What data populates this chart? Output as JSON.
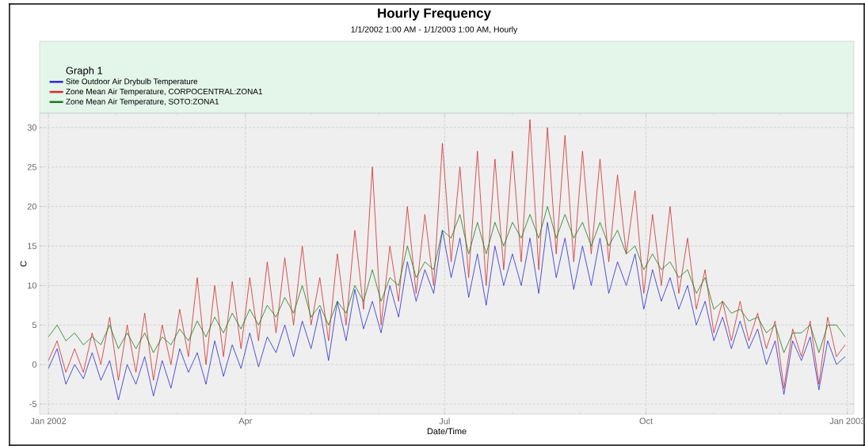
{
  "chart_data": {
    "type": "line",
    "title": "Hourly Frequency",
    "subtitle": "1/1/2002 1:00 AM - 1/1/2003 1:00 AM, Hourly",
    "legend_title": "Graph 1",
    "legend": "top",
    "grid": true,
    "line_style": "solid",
    "xlabel": "Date/Time",
    "ylabel": "C",
    "x": [
      "2002-01-01",
      "2002-01-05",
      "2002-01-09",
      "2002-01-13",
      "2002-01-17",
      "2002-01-21",
      "2002-01-25",
      "2002-01-29",
      "2002-02-02",
      "2002-02-06",
      "2002-02-10",
      "2002-02-14",
      "2002-02-18",
      "2002-02-22",
      "2002-02-26",
      "2002-03-02",
      "2002-03-06",
      "2002-03-10",
      "2002-03-14",
      "2002-03-18",
      "2002-03-22",
      "2002-03-26",
      "2002-03-30",
      "2002-04-03",
      "2002-04-07",
      "2002-04-11",
      "2002-04-15",
      "2002-04-19",
      "2002-04-23",
      "2002-04-27",
      "2002-05-01",
      "2002-05-05",
      "2002-05-09",
      "2002-05-13",
      "2002-05-17",
      "2002-05-21",
      "2002-05-25",
      "2002-05-29",
      "2002-06-02",
      "2002-06-06",
      "2002-06-10",
      "2002-06-14",
      "2002-06-18",
      "2002-06-22",
      "2002-06-26",
      "2002-06-30",
      "2002-07-04",
      "2002-07-08",
      "2002-07-12",
      "2002-07-16",
      "2002-07-20",
      "2002-07-24",
      "2002-07-28",
      "2002-08-01",
      "2002-08-05",
      "2002-08-09",
      "2002-08-13",
      "2002-08-17",
      "2002-08-21",
      "2002-08-25",
      "2002-08-29",
      "2002-09-02",
      "2002-09-06",
      "2002-09-10",
      "2002-09-14",
      "2002-09-18",
      "2002-09-22",
      "2002-09-26",
      "2002-09-30",
      "2002-10-04",
      "2002-10-08",
      "2002-10-12",
      "2002-10-16",
      "2002-10-20",
      "2002-10-24",
      "2002-10-28",
      "2002-11-01",
      "2002-11-05",
      "2002-11-09",
      "2002-11-13",
      "2002-11-17",
      "2002-11-21",
      "2002-11-25",
      "2002-11-29",
      "2002-12-03",
      "2002-12-07",
      "2002-12-11",
      "2002-12-15",
      "2002-12-19",
      "2002-12-23",
      "2002-12-27",
      "2002-12-31"
    ],
    "series": [
      {
        "name": "Site Outdoor Air Drybulb Temperature",
        "color": "#2a2ad0",
        "values": [
          -0.5,
          2,
          -2.5,
          0,
          -1.8,
          1.5,
          -2,
          0.5,
          -4.5,
          0,
          -2.5,
          1,
          -4,
          0.5,
          -3,
          2,
          -1,
          1.5,
          -2.5,
          3,
          -1.5,
          2.5,
          -0.5,
          4,
          -0.3,
          3.5,
          1.5,
          5,
          1,
          5.5,
          2,
          7,
          0.5,
          8,
          3,
          9.5,
          4.5,
          8,
          4,
          10,
          6,
          13,
          8,
          12,
          9,
          17,
          11,
          16,
          8.5,
          14,
          7.5,
          15,
          10,
          14,
          10,
          16,
          9,
          18,
          11,
          16,
          9.5,
          15,
          10,
          16,
          9,
          13,
          10,
          14,
          7,
          12,
          8,
          11,
          7,
          10,
          5,
          8,
          3,
          6,
          2,
          5.5,
          2,
          4.5,
          0,
          3,
          -3.8,
          3,
          0.5,
          3.5,
          -3.2,
          3,
          0,
          1
        ]
      },
      {
        "name": "Zone Mean Air Temperature, CORPOCENTRAL:ZONA1",
        "color": "#d42a2a",
        "values": [
          0.5,
          3,
          -1,
          2,
          -1,
          4,
          0,
          6,
          -2,
          5,
          -1,
          6.5,
          -2,
          5,
          0,
          7,
          1,
          11,
          0,
          10,
          1,
          10.5,
          2,
          11,
          3,
          13,
          4,
          13.5,
          5,
          15,
          5,
          11,
          3,
          14,
          5,
          17,
          7,
          25,
          5,
          15,
          8,
          20,
          9,
          19,
          10,
          28,
          13,
          25,
          11,
          27,
          10,
          26,
          12,
          27,
          13,
          31,
          12,
          30,
          14,
          29,
          13,
          27,
          14,
          26,
          13,
          24,
          14,
          22,
          9,
          19,
          10,
          20,
          9,
          16,
          7,
          12,
          4,
          8,
          3,
          8,
          3,
          6.5,
          2,
          5.5,
          -3,
          4.5,
          1,
          5.5,
          -2.5,
          6,
          1,
          2.5
        ]
      },
      {
        "name": "Zone Mean Air Temperature, SOTO:ZONA1",
        "color": "#1a7a1a",
        "values": [
          3.5,
          5,
          3,
          4,
          2.5,
          3.5,
          2.5,
          5,
          2,
          4,
          2,
          4,
          1.5,
          3.5,
          2.5,
          4.5,
          3,
          5.5,
          3.5,
          6,
          4,
          6.5,
          4.5,
          7,
          5,
          7.5,
          6,
          8.5,
          6.5,
          10,
          6,
          7.5,
          5,
          8,
          6.5,
          10,
          8,
          12,
          8,
          11,
          10,
          15,
          11,
          13,
          12,
          17,
          16,
          19,
          14,
          18,
          14,
          18,
          15,
          18,
          16,
          19,
          16,
          20,
          16,
          19,
          16,
          18,
          15,
          18,
          15,
          17,
          14,
          15,
          12,
          14,
          12,
          13,
          11,
          12,
          9,
          11,
          7,
          8,
          6.5,
          7,
          5.5,
          6,
          4,
          5,
          1.5,
          4,
          4,
          5,
          1.5,
          5,
          5,
          3.5
        ]
      }
    ],
    "xlim": [
      "2001-12-28",
      "2003-01-04"
    ],
    "xticks": [
      {
        "value": "2002-01-01",
        "label": "Jan 2002"
      },
      {
        "value": "2002-02-01",
        "label": null
      },
      {
        "value": "2002-03-01",
        "label": null
      },
      {
        "value": "2002-04-01",
        "label": "Apr"
      },
      {
        "value": "2002-05-01",
        "label": null
      },
      {
        "value": "2002-06-01",
        "label": null
      },
      {
        "value": "2002-07-01",
        "label": "Jul"
      },
      {
        "value": "2002-08-01",
        "label": null
      },
      {
        "value": "2002-09-01",
        "label": null
      },
      {
        "value": "2002-10-01",
        "label": "Oct"
      },
      {
        "value": "2002-11-01",
        "label": null
      },
      {
        "value": "2002-12-01",
        "label": null
      },
      {
        "value": "2003-01-01",
        "label": "Jan 2003"
      }
    ],
    "ylim": [
      -6.3,
      31.8
    ],
    "yticks": [
      -5,
      0,
      5,
      10,
      15,
      20,
      25,
      30
    ]
  }
}
